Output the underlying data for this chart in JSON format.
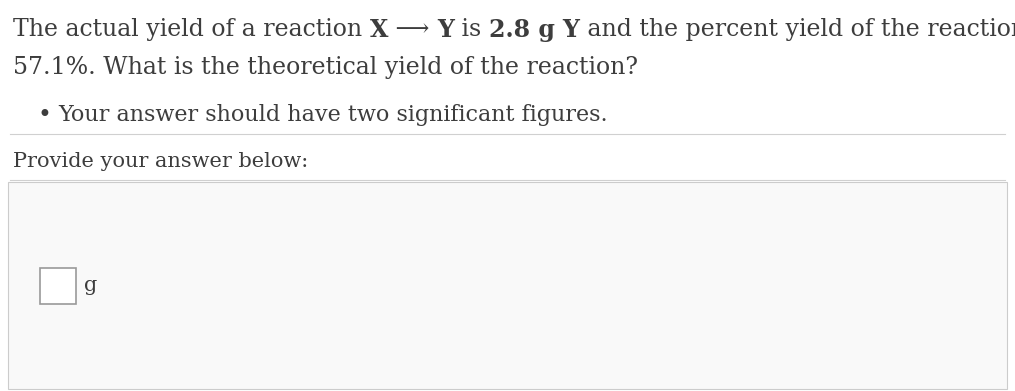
{
  "bg_color": "#ffffff",
  "text_color": "#3d3d3d",
  "line1_segments": [
    [
      "The actual yield of a reaction ",
      "normal"
    ],
    [
      "X",
      "bold"
    ],
    [
      " ⟶ ",
      "normal"
    ],
    [
      "Y",
      "bold"
    ],
    [
      " is ",
      "normal"
    ],
    [
      "2.8 g ",
      "bold"
    ],
    [
      "Y",
      "bold"
    ],
    [
      " and the percent yield of the reaction is",
      "normal"
    ]
  ],
  "line2_text": "57.1%. What is the theoretical yield of the reaction?",
  "bullet_text": "Your answer should have two significant figures.",
  "provide_text": "Provide your answer below:",
  "unit_text": "g",
  "separator_color": "#d0d0d0",
  "input_bg_color": "#f9f9f9",
  "input_border_color": "#cccccc",
  "answer_box_border": "#999999",
  "font_size_main": 17,
  "font_size_bullet": 16,
  "font_size_provide": 15,
  "font_size_unit": 15
}
